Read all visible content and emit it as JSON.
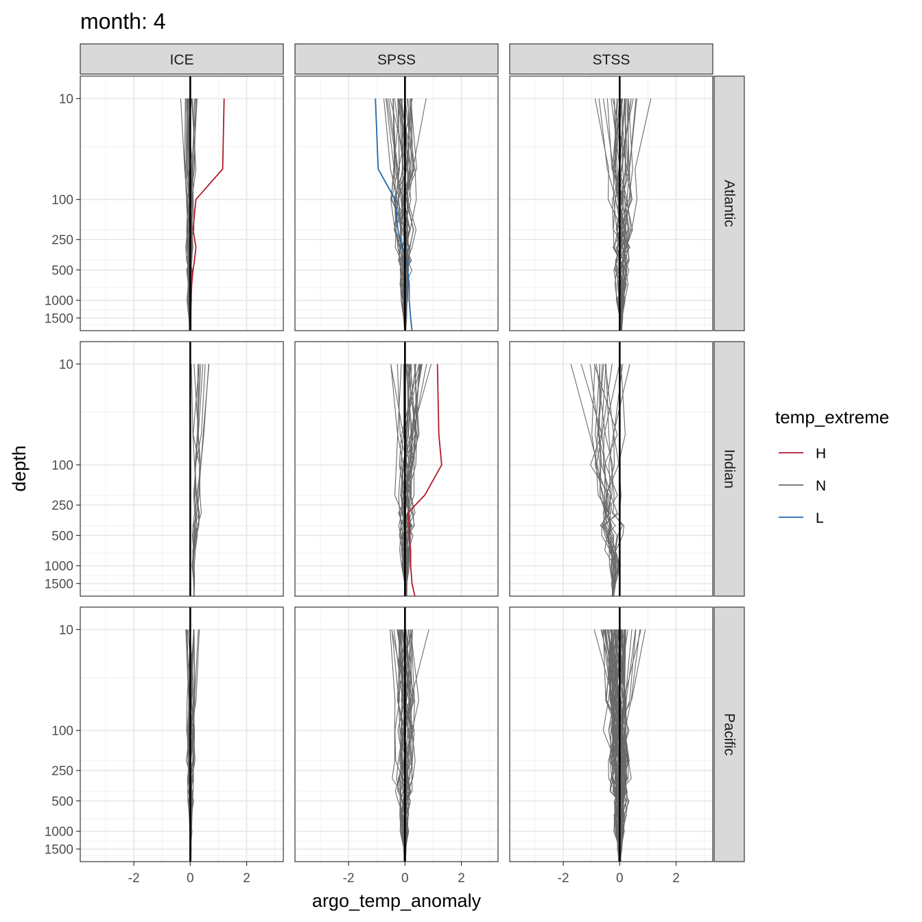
{
  "chart_data": {
    "type": "line",
    "title": "month: 4",
    "xlabel": "argo_temp_anomaly",
    "ylabel": "depth",
    "x_ticks": [
      -2,
      0,
      2
    ],
    "x_tick_labels": [
      "-2",
      "0",
      "2"
    ],
    "xlim": [
      -3.9,
      3.3
    ],
    "y_scale": "reverse-log",
    "y_ticks": [
      10,
      100,
      250,
      500,
      1000,
      1500
    ],
    "y_tick_labels": [
      "10",
      "100",
      "250",
      "500",
      "1000",
      "1500"
    ],
    "ylim": [
      2000,
      6
    ],
    "depth_levels": [
      10,
      50,
      100,
      200,
      300,
      400,
      500,
      700,
      1000,
      1500,
      2000
    ],
    "columns": [
      "ICE",
      "SPSS",
      "STSS"
    ],
    "rows": [
      "Atlantic",
      "Indian",
      "Pacific"
    ],
    "legend": {
      "title": "temp_extreme",
      "position": "right",
      "entries": [
        {
          "key": "H",
          "label": "H",
          "color": "#b2182b"
        },
        {
          "key": "N",
          "label": "N",
          "color": "#696969"
        },
        {
          "key": "L",
          "label": "L",
          "color": "#2166ac"
        }
      ]
    },
    "zero_line": {
      "x": 0,
      "color": "#000000"
    },
    "panels": [
      {
        "col": "ICE",
        "row": "Atlantic",
        "n_profiles": 22,
        "x_center": -0.05,
        "surface_spread": 0.45,
        "deep_spread": 0.08,
        "highlight": [
          {
            "extreme": "H",
            "values": [
              1.2,
              1.15,
              0.2,
              0.1,
              0.2,
              0.15,
              0.1,
              0.05,
              0.03,
              0.02,
              0.02
            ]
          }
        ]
      },
      {
        "col": "SPSS",
        "row": "Atlantic",
        "n_profiles": 32,
        "x_center": 0.0,
        "surface_spread": 1.1,
        "deep_spread": 0.15,
        "highlight": [
          {
            "extreme": "L",
            "values": [
              -1.05,
              -0.95,
              -0.35,
              -0.25,
              -0.1,
              0.05,
              0.1,
              0.15,
              0.15,
              0.2,
              0.25
            ]
          }
        ]
      },
      {
        "col": "STSS",
        "row": "Atlantic",
        "n_profiles": 30,
        "x_center": 0.1,
        "surface_spread": 1.2,
        "deep_spread": 0.15,
        "highlight": []
      },
      {
        "col": "ICE",
        "row": "Indian",
        "n_profiles": 10,
        "x_center": 0.35,
        "surface_spread": 0.5,
        "deep_spread": 0.05,
        "highlight": []
      },
      {
        "col": "SPSS",
        "row": "Indian",
        "n_profiles": 28,
        "x_center": 0.1,
        "surface_spread": 1.0,
        "deep_spread": 0.15,
        "highlight": [
          {
            "extreme": "H",
            "values": [
              1.15,
              1.2,
              1.3,
              0.7,
              0.1,
              0.15,
              0.15,
              0.2,
              0.2,
              0.25,
              0.35
            ]
          }
        ]
      },
      {
        "col": "STSS",
        "row": "Indian",
        "n_profiles": 18,
        "x_center": -0.6,
        "surface_spread": 1.6,
        "deep_spread": 0.3,
        "highlight": []
      },
      {
        "col": "ICE",
        "row": "Pacific",
        "n_profiles": 16,
        "x_center": 0.05,
        "surface_spread": 0.45,
        "deep_spread": 0.06,
        "highlight": []
      },
      {
        "col": "SPSS",
        "row": "Pacific",
        "n_profiles": 34,
        "x_center": 0.0,
        "surface_spread": 1.0,
        "deep_spread": 0.15,
        "highlight": []
      },
      {
        "col": "STSS",
        "row": "Pacific",
        "n_profiles": 70,
        "x_center": 0.0,
        "surface_spread": 1.1,
        "deep_spread": 0.2,
        "highlight": []
      }
    ]
  }
}
